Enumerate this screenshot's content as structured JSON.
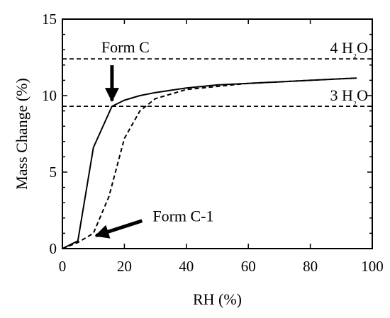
{
  "chart_data": {
    "type": "line",
    "title": "",
    "xlabel": "RH (%)",
    "ylabel": "Mass Change (%)",
    "xlim": [
      0,
      100
    ],
    "ylim": [
      0,
      15
    ],
    "xticks": [
      0,
      20,
      40,
      60,
      80,
      100
    ],
    "yticks": [
      0,
      5,
      10,
      15
    ],
    "grid": false,
    "series": [
      {
        "style": "solid",
        "color": "#000000",
        "x": [
          0,
          5,
          10,
          16,
          20,
          25,
          30,
          40,
          50,
          60,
          70,
          80,
          90,
          95
        ],
        "y": [
          0.0,
          0.5,
          6.6,
          9.3,
          9.7,
          10.0,
          10.2,
          10.5,
          10.7,
          10.8,
          10.9,
          11.0,
          11.1,
          11.15
        ]
      },
      {
        "style": "dashed",
        "color": "#000000",
        "x": [
          0,
          5,
          10,
          15,
          20,
          25,
          30,
          40,
          50,
          60,
          70,
          80,
          90,
          95
        ],
        "y": [
          0.0,
          0.4,
          1.0,
          3.4,
          7.2,
          9.0,
          9.8,
          10.4,
          10.6,
          10.8,
          10.9,
          11.0,
          11.1,
          11.15
        ]
      }
    ],
    "reference_lines": [
      {
        "y": 12.4,
        "style": "dashed",
        "label": "4 H₂O"
      },
      {
        "y": 9.3,
        "style": "dashed",
        "label": "3 H₂O"
      }
    ],
    "annotations": [
      {
        "text": "Form C",
        "arrow_to": {
          "x": 16,
          "y": 9.3
        }
      },
      {
        "text": "Form C-1",
        "arrow_to": {
          "x": 9,
          "y": 0.8
        }
      }
    ]
  }
}
